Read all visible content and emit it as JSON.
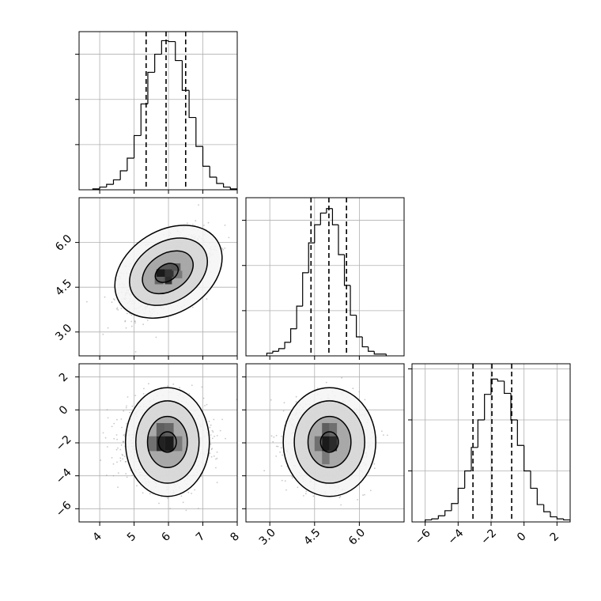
{
  "chart_data": {
    "type": "corner",
    "colors": {
      "line": "#000000",
      "grid": "#b0b0b0",
      "samples": "#9a9a9a"
    },
    "params": [
      {
        "id": "p0",
        "range": [
          3.4,
          8.0
        ],
        "ticks": [
          4,
          5,
          6,
          7,
          8
        ],
        "tick_labels": [
          "4",
          "5",
          "6",
          "7",
          "8"
        ],
        "quantiles": [
          5.35,
          5.93,
          6.5
        ]
      },
      {
        "id": "p1",
        "range": [
          2.2,
          7.5
        ],
        "ticks": [
          3.0,
          4.5,
          6.0
        ],
        "tick_labels": [
          "3.0",
          "4.5",
          "6.0"
        ],
        "quantiles": [
          4.38,
          4.98,
          5.57
        ]
      },
      {
        "id": "p2",
        "range": [
          -6.8,
          2.8
        ],
        "ticks": [
          -6,
          -4,
          -2,
          0,
          2
        ],
        "tick_labels": [
          "−6",
          "−4",
          "−2",
          "0",
          "2"
        ],
        "quantiles": [
          -3.1,
          -1.95,
          -0.75
        ]
      }
    ],
    "histograms": [
      {
        "param": 0,
        "bin_edges": [
          3.8,
          4.0,
          4.2,
          4.4,
          4.6,
          4.8,
          5.0,
          5.2,
          5.4,
          5.6,
          5.8,
          6.0,
          6.2,
          6.4,
          6.6,
          6.8,
          7.0,
          7.2,
          7.4,
          7.6,
          7.8,
          8.0
        ],
        "counts": [
          1,
          3,
          6,
          11,
          21,
          35,
          60,
          95,
          130,
          150,
          165,
          164,
          143,
          110,
          80,
          48,
          26,
          14,
          7,
          3,
          1
        ],
        "ymax": 175,
        "ticks": [
          50,
          100,
          150
        ]
      },
      {
        "param": 1,
        "bin_edges": [
          2.9,
          3.1,
          3.3,
          3.5,
          3.7,
          3.9,
          4.1,
          4.3,
          4.5,
          4.7,
          4.9,
          5.1,
          5.3,
          5.5,
          5.7,
          5.9,
          6.1,
          6.3,
          6.5,
          6.9
        ],
        "counts": [
          3,
          5,
          8,
          15,
          30,
          55,
          92,
          125,
          145,
          158,
          163,
          145,
          112,
          78,
          45,
          21,
          10,
          5,
          2
        ],
        "ymax": 175,
        "ticks": [
          50,
          100,
          150
        ]
      },
      {
        "param": 2,
        "bin_edges": [
          -6.0,
          -5.6,
          -5.2,
          -4.8,
          -4.4,
          -4.0,
          -3.6,
          -3.2,
          -2.8,
          -2.4,
          -2.0,
          -1.6,
          -1.2,
          -0.8,
          -0.4,
          0.0,
          0.4,
          0.8,
          1.2,
          1.6,
          2.0,
          2.4,
          2.8
        ],
        "counts": [
          2,
          3,
          6,
          11,
          18,
          33,
          50,
          73,
          100,
          125,
          140,
          138,
          126,
          100,
          75,
          50,
          33,
          17,
          10,
          5,
          3,
          2
        ],
        "ymax": 155,
        "ticks": [
          50,
          100,
          150
        ]
      }
    ],
    "scatter_panels": [
      {
        "x_param": 0,
        "y_param": 1,
        "center": [
          5.93,
          4.98
        ],
        "sd": [
          0.57,
          0.6
        ],
        "corr": 0.5,
        "density_bins": [
          {
            "x": [
              5.9,
              6.1
            ],
            "y": [
              4.6,
              4.85
            ],
            "level": 0.85
          },
          {
            "x": [
              5.65,
              5.9
            ],
            "y": [
              4.85,
              5.1
            ],
            "level": 0.95
          },
          {
            "x": [
              5.9,
              6.15
            ],
            "y": [
              4.85,
              5.1
            ],
            "level": 0.8
          },
          {
            "x": [
              6.1,
              6.35
            ],
            "y": [
              5.05,
              5.3
            ],
            "level": 0.6
          },
          {
            "x": [
              5.6,
              5.85
            ],
            "y": [
              4.6,
              4.85
            ],
            "level": 0.55
          },
          {
            "x": [
              6.15,
              6.4
            ],
            "y": [
              4.8,
              5.05
            ],
            "level": 0.45
          }
        ],
        "contours": [
          {
            "center": [
              6.0,
              5.02
            ],
            "rx": 1.68,
            "ry": 1.38,
            "angle_deg": 32
          },
          {
            "center": [
              6.0,
              5.02
            ],
            "rx": 1.22,
            "ry": 1.0,
            "angle_deg": 32
          },
          {
            "center": [
              5.98,
              5.0
            ],
            "rx": 0.8,
            "ry": 0.62,
            "angle_deg": 32
          },
          {
            "center": [
              5.95,
              4.98
            ],
            "rx": 0.36,
            "ry": 0.28,
            "angle_deg": 30
          }
        ]
      },
      {
        "x_param": 0,
        "y_param": 2,
        "center": [
          5.93,
          -1.95
        ],
        "sd": [
          0.57,
          1.18
        ],
        "corr": 0.0,
        "density_bins": [
          {
            "x": [
              5.65,
              5.9
            ],
            "y": [
              -2.5,
              -1.6
            ],
            "level": 0.9
          },
          {
            "x": [
              5.9,
              6.15
            ],
            "y": [
              -2.5,
              -1.6
            ],
            "level": 0.95
          },
          {
            "x": [
              5.65,
              5.9
            ],
            "y": [
              -1.6,
              -0.8
            ],
            "level": 0.6
          },
          {
            "x": [
              5.9,
              6.15
            ],
            "y": [
              -1.6,
              -0.8
            ],
            "level": 0.55
          },
          {
            "x": [
              5.4,
              5.65
            ],
            "y": [
              -2.5,
              -1.6
            ],
            "level": 0.5
          },
          {
            "x": [
              6.15,
              6.4
            ],
            "y": [
              -2.5,
              -1.6
            ],
            "level": 0.45
          }
        ],
        "contours": [
          {
            "center": [
              5.97,
              -1.95
            ],
            "rx": 1.22,
            "ry": 3.3,
            "angle_deg": 0
          },
          {
            "center": [
              5.97,
              -1.95
            ],
            "rx": 0.92,
            "ry": 2.5,
            "angle_deg": 0
          },
          {
            "center": [
              5.97,
              -1.95
            ],
            "rx": 0.58,
            "ry": 1.55,
            "angle_deg": 0
          },
          {
            "center": [
              5.97,
              -1.95
            ],
            "rx": 0.26,
            "ry": 0.62,
            "angle_deg": 0
          }
        ]
      },
      {
        "x_param": 1,
        "y_param": 2,
        "center": [
          4.98,
          -1.95
        ],
        "sd": [
          0.6,
          1.18
        ],
        "corr": 0.0,
        "density_bins": [
          {
            "x": [
              4.75,
              5.0
            ],
            "y": [
              -2.5,
              -1.6
            ],
            "level": 0.95
          },
          {
            "x": [
              5.0,
              5.25
            ],
            "y": [
              -2.5,
              -1.6
            ],
            "level": 0.85
          },
          {
            "x": [
              4.75,
              5.0
            ],
            "y": [
              -1.6,
              -0.8
            ],
            "level": 0.6
          },
          {
            "x": [
              5.0,
              5.25
            ],
            "y": [
              -1.6,
              -0.8
            ],
            "level": 0.5
          },
          {
            "x": [
              4.5,
              4.75
            ],
            "y": [
              -2.5,
              -1.6
            ],
            "level": 0.5
          },
          {
            "x": [
              4.75,
              5.0
            ],
            "y": [
              -3.3,
              -2.5
            ],
            "level": 0.45
          }
        ],
        "contours": [
          {
            "center": [
              5.0,
              -1.95
            ],
            "rx": 1.55,
            "ry": 3.3,
            "angle_deg": 0
          },
          {
            "center": [
              5.0,
              -1.95
            ],
            "rx": 1.18,
            "ry": 2.5,
            "angle_deg": 0
          },
          {
            "center": [
              5.0,
              -1.95
            ],
            "rx": 0.72,
            "ry": 1.55,
            "angle_deg": 0
          },
          {
            "center": [
              5.0,
              -1.95
            ],
            "rx": 0.3,
            "ry": 0.62,
            "angle_deg": 0
          }
        ]
      }
    ]
  }
}
